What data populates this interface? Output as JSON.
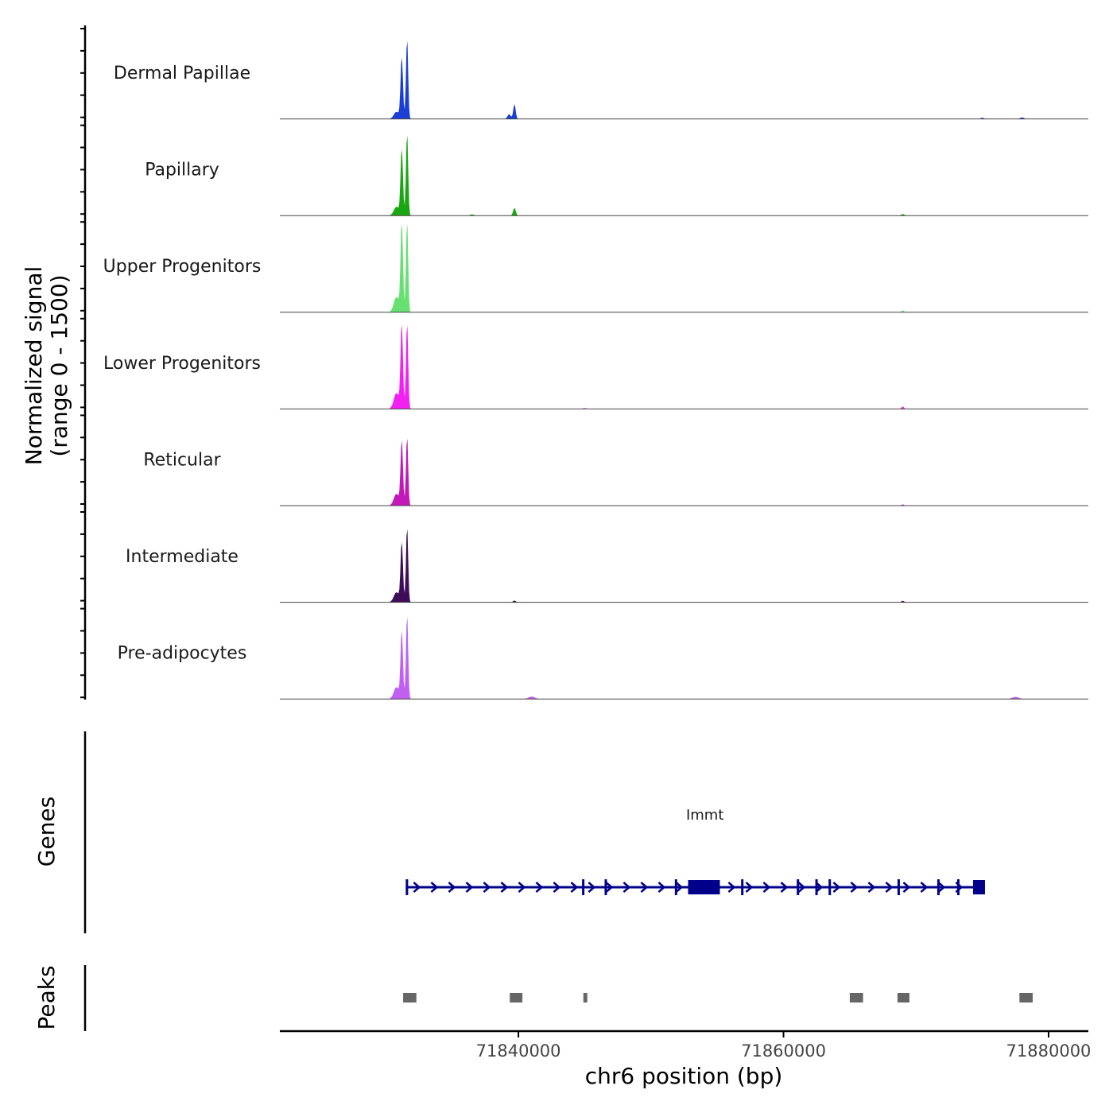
{
  "chart_data": {
    "type": "area",
    "title": "",
    "chromosome": "chr6",
    "xlabel": "chr6 position (bp)",
    "ylabel_line1": "Normalized signal",
    "ylabel_line2": "(range 0 - 1500)",
    "ylim": [
      0,
      1500
    ],
    "xlim": [
      71822000,
      71883000
    ],
    "x_ticks": [
      71840000,
      71860000,
      71880000
    ],
    "x_tick_labels": [
      "71840000",
      "71860000",
      "71880000"
    ],
    "genes_label": "Genes",
    "peaks_label": "Peaks",
    "tracks": [
      {
        "name": "Dermal Papillae",
        "color": "#1a3fd6",
        "peaks": [
          [
            71831200,
            1050,
            90
          ],
          [
            71831600,
            1380,
            80
          ],
          [
            71830800,
            120,
            200
          ],
          [
            71839300,
            80,
            120
          ],
          [
            71839700,
            250,
            90
          ],
          [
            71875000,
            20,
            120
          ],
          [
            71878000,
            25,
            150
          ]
        ]
      },
      {
        "name": "Papillary",
        "color": "#1aa612",
        "peaks": [
          [
            71831200,
            1130,
            90
          ],
          [
            71831600,
            1420,
            80
          ],
          [
            71830800,
            150,
            200
          ],
          [
            71839700,
            130,
            100
          ],
          [
            71836500,
            20,
            150
          ],
          [
            71869000,
            25,
            120
          ]
        ]
      },
      {
        "name": "Upper Progenitors",
        "color": "#66e070",
        "peaks": [
          [
            71831200,
            1540,
            90
          ],
          [
            71831600,
            1560,
            80
          ],
          [
            71830800,
            260,
            200
          ],
          [
            71869000,
            30,
            100
          ]
        ]
      },
      {
        "name": "Lower Progenitors",
        "color": "#f220f0",
        "peaks": [
          [
            71831200,
            1430,
            90
          ],
          [
            71831600,
            1480,
            80
          ],
          [
            71830800,
            270,
            200
          ],
          [
            71869000,
            40,
            100
          ],
          [
            71845000,
            15,
            150
          ]
        ]
      },
      {
        "name": "Reticular",
        "color": "#c219b8",
        "peaks": [
          [
            71831200,
            1100,
            90
          ],
          [
            71831600,
            1190,
            80
          ],
          [
            71830800,
            200,
            200
          ],
          [
            71869000,
            20,
            100
          ]
        ]
      },
      {
        "name": "Intermediate",
        "color": "#3e0c58",
        "peaks": [
          [
            71831200,
            1020,
            90
          ],
          [
            71831600,
            1300,
            80
          ],
          [
            71830800,
            170,
            200
          ],
          [
            71839700,
            30,
            100
          ],
          [
            71869000,
            25,
            100
          ]
        ]
      },
      {
        "name": "Pre-adipocytes",
        "color": "#c05ff2",
        "peaks": [
          [
            71831200,
            1150,
            90
          ],
          [
            71831600,
            1450,
            80
          ],
          [
            71830800,
            200,
            200
          ],
          [
            71841000,
            40,
            250
          ],
          [
            71877500,
            35,
            250
          ]
        ]
      }
    ],
    "gene": {
      "name": "Immt",
      "color": "#00008b",
      "strand": "+",
      "start": 71831500,
      "end": 71875200,
      "exons": [
        [
          71831500,
          71831650
        ],
        [
          71844800,
          71844900
        ],
        [
          71846500,
          71846650
        ],
        [
          71851800,
          71851900
        ],
        [
          71852800,
          71855200
        ],
        [
          71856800,
          71856900
        ],
        [
          71861000,
          71861100
        ],
        [
          71862400,
          71862500
        ],
        [
          71863400,
          71863550
        ],
        [
          71868600,
          71868750
        ],
        [
          71871600,
          71871700
        ],
        [
          71873100,
          71873200
        ],
        [
          71874300,
          71875200
        ]
      ]
    },
    "peaks_track": [
      [
        71831300,
        71832300
      ],
      [
        71839350,
        71840300
      ],
      [
        71844900,
        71845200
      ],
      [
        71865000,
        71866000
      ],
      [
        71868600,
        71869500
      ],
      [
        71877800,
        71878800
      ]
    ]
  }
}
